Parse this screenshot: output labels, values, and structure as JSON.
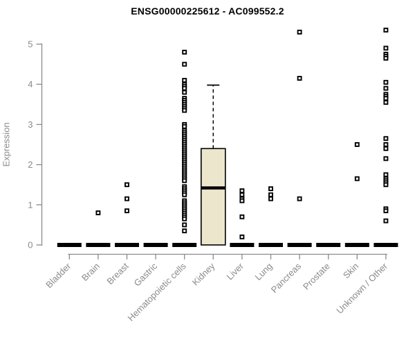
{
  "colors": {
    "title": "#000000",
    "axis": "#8a8a8a",
    "tick_label": "#8a8a8a",
    "box_fill": "#ebe6cc",
    "box_border": "#000000",
    "median": "#000000",
    "collapsed_bar": "#000000",
    "point_fill": "#ffffff",
    "point_stroke": "#000000"
  },
  "chart_data": {
    "type": "boxplot",
    "title": "ENSG00000225612 - AC099552.2",
    "ylabel": "Expression",
    "xlabel": "",
    "ylim": [
      0,
      5.45
    ],
    "yticks": [
      0,
      1,
      2,
      3,
      4,
      5
    ],
    "grid": false,
    "legend": "none",
    "point_marker": "open-square",
    "categories": [
      "Bladder",
      "Brain",
      "Breast",
      "Gastric",
      "Hematopoietic cells",
      "Kidney",
      "Liver",
      "Lung",
      "Pancreas",
      "Prostate",
      "Skin",
      "Unknown / Other"
    ],
    "boxes": [
      {
        "category": "Bladder",
        "median": 0,
        "q1": 0,
        "q3": 0,
        "whisker_low": 0,
        "whisker_high": 0
      },
      {
        "category": "Brain",
        "median": 0,
        "q1": 0,
        "q3": 0,
        "whisker_low": 0,
        "whisker_high": 0
      },
      {
        "category": "Breast",
        "median": 0,
        "q1": 0,
        "q3": 0,
        "whisker_low": 0,
        "whisker_high": 0
      },
      {
        "category": "Gastric",
        "median": 0,
        "q1": 0,
        "q3": 0,
        "whisker_low": 0,
        "whisker_high": 0
      },
      {
        "category": "Hematopoietic cells",
        "median": 0,
        "q1": 0,
        "q3": 0,
        "whisker_low": 0,
        "whisker_high": 0
      },
      {
        "category": "Kidney",
        "median": 1.42,
        "q1": 0,
        "q3": 2.4,
        "whisker_low": 0,
        "whisker_high": 3.98
      },
      {
        "category": "Liver",
        "median": 0,
        "q1": 0,
        "q3": 0,
        "whisker_low": 0,
        "whisker_high": 0
      },
      {
        "category": "Lung",
        "median": 0,
        "q1": 0,
        "q3": 0,
        "whisker_low": 0,
        "whisker_high": 0
      },
      {
        "category": "Pancreas",
        "median": 0,
        "q1": 0,
        "q3": 0,
        "whisker_low": 0,
        "whisker_high": 0
      },
      {
        "category": "Prostate",
        "median": 0,
        "q1": 0,
        "q3": 0,
        "whisker_low": 0,
        "whisker_high": 0
      },
      {
        "category": "Skin",
        "median": 0,
        "q1": 0,
        "q3": 0,
        "whisker_low": 0,
        "whisker_high": 0
      },
      {
        "category": "Unknown / Other",
        "median": 0,
        "q1": 0,
        "q3": 0,
        "whisker_low": 0,
        "whisker_high": 0
      }
    ],
    "points": [
      [],
      [
        0.8
      ],
      [
        1.5,
        1.15,
        0.85
      ],
      [],
      [
        4.8,
        4.5,
        4.1,
        4.0,
        3.95,
        3.9,
        3.8,
        3.65,
        3.6,
        3.55,
        3.5,
        3.45,
        3.4,
        3.35,
        3.0,
        2.95,
        2.85,
        2.8,
        2.75,
        2.7,
        2.65,
        2.6,
        2.55,
        2.5,
        2.45,
        2.4,
        2.35,
        2.3,
        2.25,
        2.2,
        2.15,
        2.1,
        2.05,
        2.0,
        1.95,
        1.9,
        1.85,
        1.8,
        1.75,
        1.7,
        1.65,
        1.6,
        1.45,
        1.4,
        1.35,
        1.3,
        1.25,
        1.1,
        1.05,
        1.0,
        0.95,
        0.9,
        0.85,
        0.8,
        0.75,
        0.7,
        0.65,
        0.5,
        0.35
      ],
      [],
      [
        1.35,
        1.25,
        1.15,
        1.1,
        0.7,
        0.2
      ],
      [
        1.4,
        1.25,
        1.15
      ],
      [
        5.3,
        4.15,
        1.15
      ],
      [],
      [
        2.5,
        1.65
      ],
      [
        5.35,
        4.9,
        4.75,
        4.7,
        4.65,
        4.05,
        3.9,
        3.75,
        3.7,
        3.65,
        3.55,
        2.65,
        2.5,
        2.4,
        2.15,
        1.75,
        1.65,
        1.6,
        1.55,
        1.5,
        0.9,
        0.85,
        0.6
      ]
    ]
  }
}
